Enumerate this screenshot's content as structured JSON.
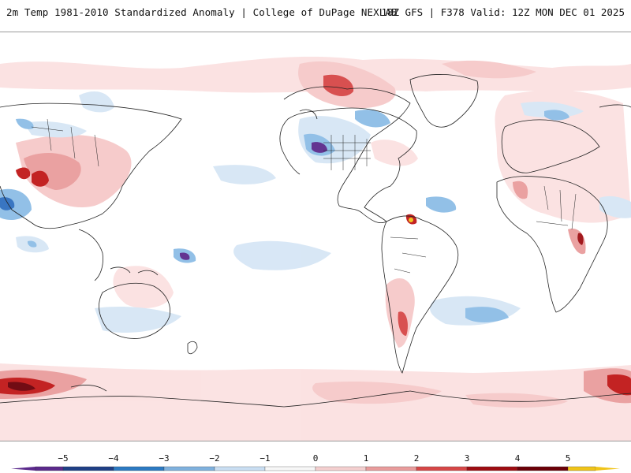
{
  "header": {
    "left_title": "2m Temp 1981-2010 Standardized Anomaly | College of DuPage NEXLAB",
    "right_title": "18Z GFS | F378 Valid: 12Z MON DEC 01 2025"
  },
  "colorbar": {
    "ticks": [
      "-5",
      "-4",
      "-3",
      "-2",
      "-1",
      "0",
      "1",
      "2",
      "3",
      "4",
      "5"
    ],
    "colors": [
      "#5b2a8c",
      "#1f3f86",
      "#2c7ac2",
      "#7fb1de",
      "#c9def2",
      "#f7f7f7",
      "#f4cfcf",
      "#e99c9c",
      "#d64747",
      "#9e0d12",
      "#6b0008",
      "#f0c419"
    ]
  },
  "map": {
    "description_colors": {
      "land_outline": "#222222",
      "neutral": "#ffffff",
      "warm_light": "#f7d6d6",
      "warm_mid": "#e99c9c",
      "warm_strong": "#c01818",
      "cold_light": "#d6e6f5",
      "cold_mid": "#8dbde6",
      "cold_strong": "#2f6fbf"
    }
  }
}
